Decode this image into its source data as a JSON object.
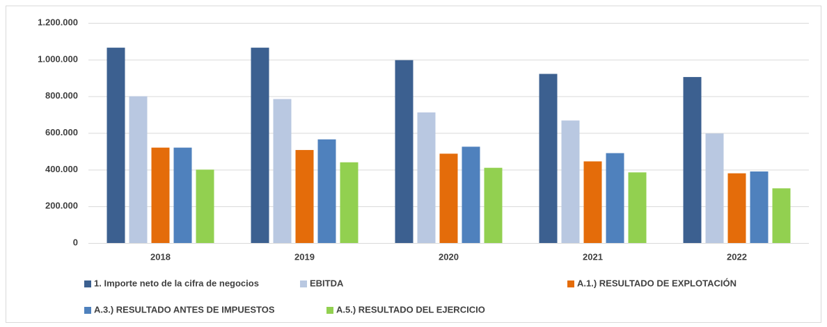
{
  "chart_data": {
    "type": "bar",
    "categories": [
      "2018",
      "2019",
      "2020",
      "2021",
      "2022"
    ],
    "series": [
      {
        "name": "1. Importe neto de la cifra de negocios",
        "color": "#3c6090",
        "values": [
          1065000,
          1065000,
          997000,
          922000,
          905000
        ]
      },
      {
        "name": "EBITDA",
        "color": "#b9c8e1",
        "values": [
          800000,
          785000,
          712000,
          668000,
          597000
        ]
      },
      {
        "name": "A.1.) RESULTADO DE EXPLOTACIÓN",
        "color": "#e46c0a",
        "values": [
          520000,
          507000,
          487000,
          445000,
          380000
        ]
      },
      {
        "name": "A.3.) RESULTADO ANTES DE IMPUESTOS",
        "color": "#4f81bd",
        "values": [
          520000,
          565000,
          525000,
          490000,
          390000
        ]
      },
      {
        "name": "A.5.) RESULTADO DEL EJERCICIO",
        "color": "#92d050",
        "values": [
          400000,
          440000,
          410000,
          385000,
          298000
        ]
      }
    ],
    "ylim": [
      0,
      1200000
    ],
    "yticks": [
      0,
      {
        "value": 200000,
        "label": "200.000"
      },
      {
        "value": 400000,
        "label": "400.000"
      },
      {
        "value": 600000,
        "label": "600.000"
      },
      {
        "value": 800000,
        "label": "800.000"
      },
      {
        "value": 1000000,
        "label": "1.000.000"
      },
      {
        "value": 1200000,
        "label": "1.200.000"
      }
    ],
    "grid": true
  }
}
